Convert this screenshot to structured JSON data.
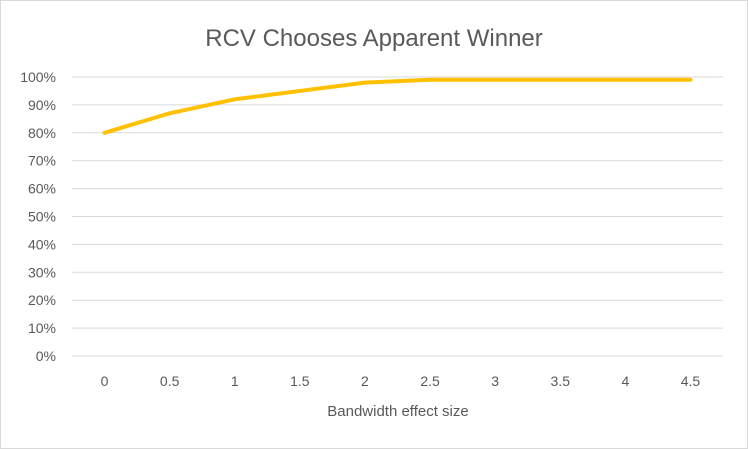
{
  "chart_data": {
    "type": "line",
    "title": "RCV Chooses Apparent Winner",
    "xlabel": "Bandwidth effect size",
    "ylabel": "",
    "x": [
      0,
      0.5,
      1,
      1.5,
      2,
      2.5,
      3,
      3.5,
      4,
      4.5
    ],
    "x_tick_labels": [
      "0",
      "0.5",
      "1",
      "1.5",
      "2",
      "2.5",
      "3",
      "3.5",
      "4",
      "4.5"
    ],
    "y_tick_labels": [
      "0%",
      "10%",
      "20%",
      "30%",
      "40%",
      "50%",
      "60%",
      "70%",
      "80%",
      "90%",
      "100%"
    ],
    "ylim": [
      0,
      100
    ],
    "grid": true,
    "legend": "none",
    "series": [
      {
        "color": "#FFC000",
        "values": [
          80,
          87,
          92,
          95,
          98,
          99,
          99,
          99,
          99,
          99
        ]
      }
    ]
  }
}
